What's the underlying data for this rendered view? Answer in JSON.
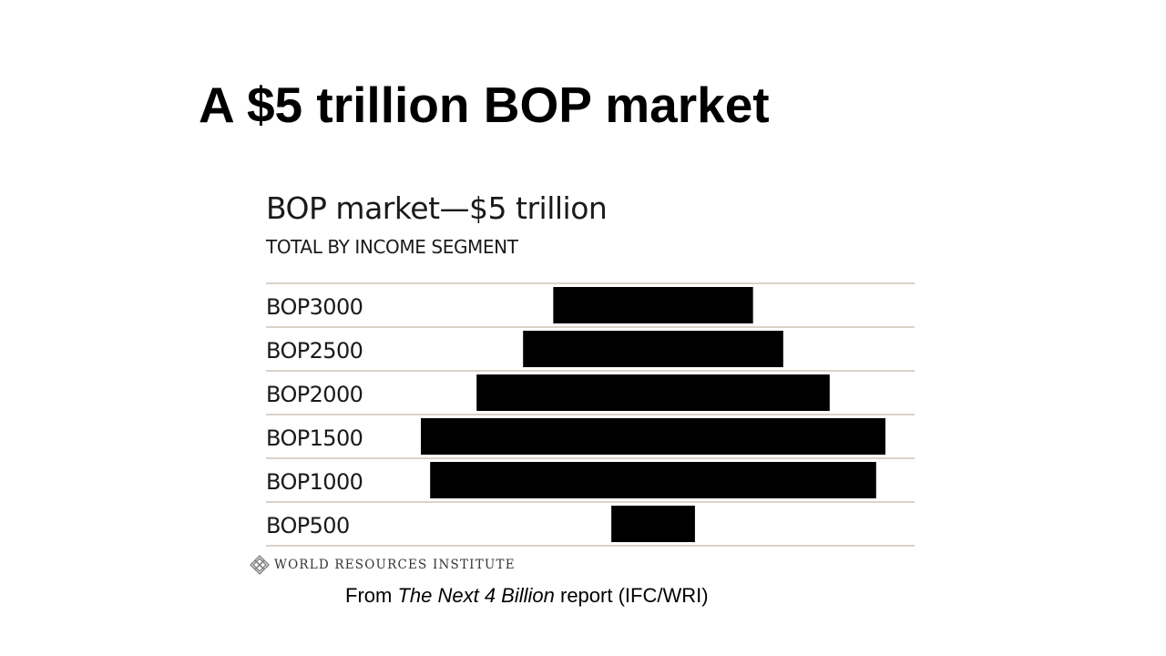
{
  "slide": {
    "title": "A $5 trillion BOP market",
    "caption": {
      "prefix": "From ",
      "report": "The Next 4 Billion",
      "suffix": " report (IFC/WRI)"
    }
  },
  "logo": {
    "icon": "wri-emblem-icon",
    "text": "WORLD RESOURCES INSTITUTE"
  },
  "chart_data": {
    "type": "bar",
    "orientation": "horizontal-centered",
    "title": "BOP market—$5 trillion",
    "subtitle": "TOTAL BY INCOME SEGMENT",
    "categories": [
      "BOP3000",
      "BOP2500",
      "BOP2000",
      "BOP1500",
      "BOP1000",
      "BOP500"
    ],
    "values": [
      0.43,
      0.56,
      0.76,
      1.0,
      0.96,
      0.18
    ],
    "value_unit": "relative total (largest segment = 1)",
    "bar_color": "#000000",
    "gridline_color": "#d9d2c9",
    "grid": true,
    "legend": "none"
  }
}
